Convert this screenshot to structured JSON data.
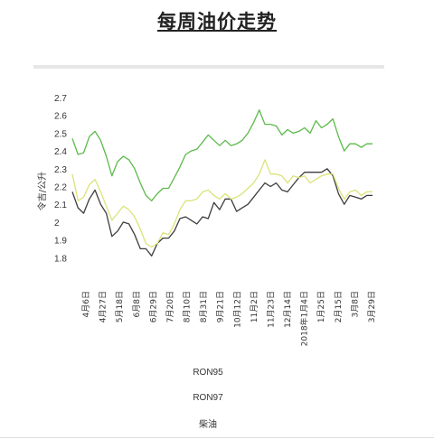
{
  "page": {
    "title": "每周油价走势"
  },
  "chart_data": {
    "type": "line",
    "title": "",
    "xlabel": "",
    "ylabel": "令吉/公升",
    "ylim": [
      1.7,
      2.7
    ],
    "yticks": [
      "2.7",
      "2.6",
      "2.5",
      "2.4",
      "2.3",
      "2.2",
      "2.1",
      "2",
      "1.9",
      "1.8"
    ],
    "grid": false,
    "legend_position": "bottom",
    "xtick_labels": [
      "4月6日",
      "4月27日",
      "5月18日",
      "6月8日",
      "6月29日",
      "7月20日",
      "8月10日",
      "8月31日",
      "9月21日",
      "10月12日",
      "11月2日",
      "11月23日",
      "12月14日",
      "2018年1月4日",
      "1月25日",
      "2月15日",
      "3月8日",
      "3月29日"
    ],
    "series": [
      {
        "name": "RON95",
        "color": "#3d3d3d",
        "values": [
          2.17,
          2.08,
          2.05,
          2.13,
          2.18,
          2.1,
          2.05,
          1.92,
          1.95,
          2.0,
          1.99,
          1.93,
          1.85,
          1.85,
          1.81,
          1.88,
          1.91,
          1.91,
          1.95,
          2.02,
          2.03,
          2.01,
          1.99,
          2.03,
          2.02,
          2.11,
          2.07,
          2.13,
          2.13,
          2.06,
          2.08,
          2.1,
          2.14,
          2.18,
          2.22,
          2.2,
          2.22,
          2.18,
          2.17,
          2.21,
          2.25,
          2.28,
          2.28,
          2.28,
          2.28,
          2.3,
          2.26,
          2.16,
          2.1,
          2.15,
          2.14,
          2.13,
          2.15,
          2.15
        ]
      },
      {
        "name": "RON97",
        "color": "#dce37a",
        "values": [
          2.27,
          2.12,
          2.14,
          2.21,
          2.24,
          2.17,
          2.09,
          2.01,
          2.05,
          2.09,
          2.07,
          2.03,
          1.96,
          1.88,
          1.86,
          1.88,
          1.94,
          1.93,
          1.99,
          2.07,
          2.12,
          2.12,
          2.13,
          2.17,
          2.18,
          2.15,
          2.13,
          2.16,
          2.13,
          2.14,
          2.16,
          2.19,
          2.22,
          2.27,
          2.35,
          2.27,
          2.27,
          2.26,
          2.22,
          2.26,
          2.25,
          2.26,
          2.22,
          2.24,
          2.26,
          2.27,
          2.27,
          2.19,
          2.13,
          2.17,
          2.18,
          2.15,
          2.17,
          2.17
        ]
      },
      {
        "name": "柴油",
        "color": "#5cba4a",
        "values": [
          2.47,
          2.38,
          2.39,
          2.48,
          2.51,
          2.46,
          2.37,
          2.26,
          2.34,
          2.37,
          2.35,
          2.3,
          2.22,
          2.15,
          2.12,
          2.16,
          2.19,
          2.19,
          2.25,
          2.31,
          2.38,
          2.4,
          2.41,
          2.45,
          2.49,
          2.46,
          2.43,
          2.46,
          2.43,
          2.44,
          2.46,
          2.5,
          2.56,
          2.63,
          2.55,
          2.55,
          2.54,
          2.49,
          2.52,
          2.5,
          2.51,
          2.53,
          2.5,
          2.57,
          2.53,
          2.55,
          2.58,
          2.48,
          2.4,
          2.44,
          2.44,
          2.42,
          2.44,
          2.44
        ]
      }
    ]
  }
}
